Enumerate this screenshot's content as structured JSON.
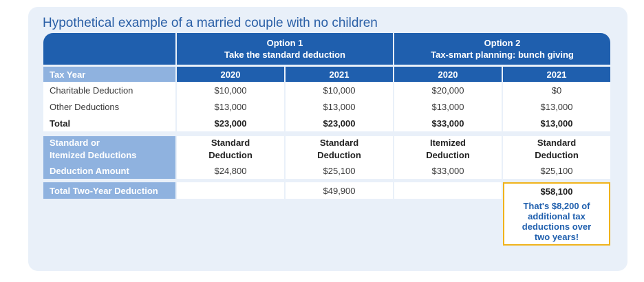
{
  "title": "Hypothetical example of a married couple with no children",
  "option1": {
    "line1": "Option 1",
    "line2": "Take the standard deduction"
  },
  "option2": {
    "line1": "Option 2",
    "line2": "Tax-smart planning: bunch giving"
  },
  "tax_year_label": "Tax Year",
  "years": [
    "2020",
    "2021",
    "2020",
    "2021"
  ],
  "rows": {
    "charitable": {
      "label": "Charitable Deduction",
      "values": [
        "$10,000",
        "$10,000",
        "$20,000",
        "$0"
      ]
    },
    "other": {
      "label": "Other Deductions",
      "values": [
        "$13,000",
        "$13,000",
        "$13,000",
        "$13,000"
      ]
    },
    "total": {
      "label": "Total",
      "values": [
        "$23,000",
        "$23,000",
        "$33,000",
        "$13,000"
      ]
    }
  },
  "std_or_itemized": {
    "label_line1": "Standard or",
    "label_line2": "Itemized Deductions",
    "values": [
      {
        "line1": "Standard",
        "line2": "Deduction"
      },
      {
        "line1": "Standard",
        "line2": "Deduction"
      },
      {
        "line1": "Itemized",
        "line2": "Deduction"
      },
      {
        "line1": "Standard",
        "line2": "Deduction"
      }
    ]
  },
  "deduction_amount": {
    "label": "Deduction Amount",
    "values": [
      "$24,800",
      "$25,100",
      "$33,000",
      "$25,100"
    ]
  },
  "two_year": {
    "label": "Total Two-Year Deduction",
    "option1_value": "$49,900",
    "option2_value": "$58,100",
    "note": [
      "That's $8,200 of",
      "additional tax",
      "deductions over",
      "two years!"
    ]
  },
  "colors": {
    "header_blue": "#1f5fae",
    "side_blue": "#8fb2df",
    "highlight": "#f0b31b",
    "panel": "#e9f0f9"
  }
}
